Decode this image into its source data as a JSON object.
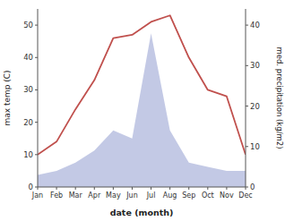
{
  "chart_data": {
    "type": "line",
    "categories": [
      "Jan",
      "Feb",
      "Mar",
      "Apr",
      "May",
      "Jun",
      "Jul",
      "Aug",
      "Sep",
      "Oct",
      "Nov",
      "Dec"
    ],
    "xlabel": "date (month)",
    "ylabel": "max temp (C)",
    "y2label": "med. precipitation (kg/m2)",
    "series": [
      {
        "type": "area",
        "axis": "y2",
        "color": "#b8c0e0",
        "values": [
          3,
          4,
          6,
          9,
          14,
          12,
          38,
          14,
          6,
          5,
          4,
          4
        ]
      },
      {
        "type": "line",
        "color": "#c0504d",
        "values": [
          10,
          14,
          24,
          33,
          46,
          47,
          51,
          53,
          40,
          30,
          28,
          10
        ]
      }
    ],
    "ylim": [
      0,
      55
    ],
    "yticks": [
      0,
      10,
      20,
      30,
      40,
      50
    ],
    "y2lim": [
      0,
      44
    ],
    "y2ticks": [
      0,
      10,
      20,
      30,
      40
    ],
    "grid": false
  }
}
